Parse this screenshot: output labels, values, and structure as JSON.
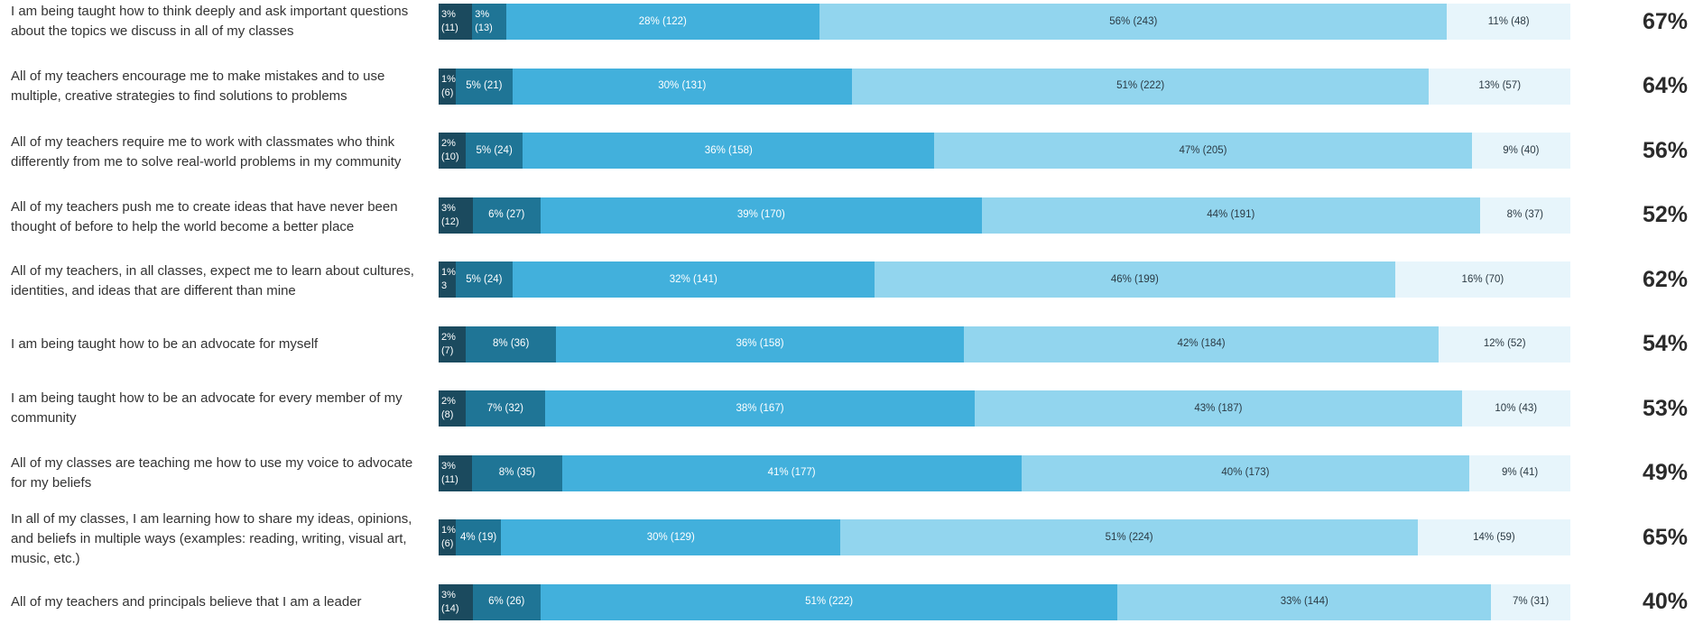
{
  "chart_data": {
    "type": "bar",
    "orientation": "horizontal",
    "stacked": true,
    "legend": "none",
    "colors": [
      "#1b4a5e",
      "#1f7596",
      "#42b0dc",
      "#92d5ee",
      "#e7f5fb"
    ],
    "rows": [
      {
        "statement": "I am being taught how to think deeply and ask important questions about the topics we discuss in all of my classes",
        "segments": [
          {
            "pct": 3,
            "count": 11,
            "label": "3%",
            "count_label": "(11)"
          },
          {
            "pct": 3,
            "count": 13,
            "label": "3%",
            "count_label": "(13)"
          },
          {
            "pct": 28,
            "count": 122,
            "label": "28% (122)"
          },
          {
            "pct": 56,
            "count": 243,
            "label": "56% (243)"
          },
          {
            "pct": 11,
            "count": 48,
            "label": "11% (48)"
          }
        ],
        "agree_total": "67%"
      },
      {
        "statement": "All of my teachers encourage me to make mistakes and to use multiple, creative strategies to find solutions to problems",
        "segments": [
          {
            "pct": 1,
            "count": 6,
            "label": "1%",
            "count_label": "(6)"
          },
          {
            "pct": 5,
            "count": 21,
            "label": "5% (21)"
          },
          {
            "pct": 30,
            "count": 131,
            "label": "30% (131)"
          },
          {
            "pct": 51,
            "count": 222,
            "label": "51% (222)"
          },
          {
            "pct": 13,
            "count": 57,
            "label": "13% (57)"
          }
        ],
        "agree_total": "64%"
      },
      {
        "statement": "All of my teachers require me to work with classmates who think differently from me to solve real-world problems in my community",
        "segments": [
          {
            "pct": 2,
            "count": 10,
            "label": "2%",
            "count_label": "(10)"
          },
          {
            "pct": 5,
            "count": 24,
            "label": "5% (24)"
          },
          {
            "pct": 36,
            "count": 158,
            "label": "36% (158)"
          },
          {
            "pct": 47,
            "count": 205,
            "label": "47% (205)"
          },
          {
            "pct": 9,
            "count": 40,
            "label": "9% (40)"
          }
        ],
        "agree_total": "56%"
      },
      {
        "statement": "All of my teachers push me to create ideas that have never been thought of before to help the world become a better place",
        "segments": [
          {
            "pct": 3,
            "count": 12,
            "label": "3%",
            "count_label": "(12)"
          },
          {
            "pct": 6,
            "count": 27,
            "label": "6% (27)"
          },
          {
            "pct": 39,
            "count": 170,
            "label": "39% (170)"
          },
          {
            "pct": 44,
            "count": 191,
            "label": "44% (191)"
          },
          {
            "pct": 8,
            "count": 37,
            "label": "8% (37)"
          }
        ],
        "agree_total": "52%"
      },
      {
        "statement": "All of my teachers, in all classes, expect me to learn about cultures, identities, and ideas that are different than mine",
        "segments": [
          {
            "pct": 1,
            "count": 3,
            "label": "1%",
            "count_label": "3"
          },
          {
            "pct": 5,
            "count": 24,
            "label": "5% (24)"
          },
          {
            "pct": 32,
            "count": 141,
            "label": "32% (141)"
          },
          {
            "pct": 46,
            "count": 199,
            "label": "46% (199)"
          },
          {
            "pct": 16,
            "count": 70,
            "label": "16% (70)"
          }
        ],
        "agree_total": "62%"
      },
      {
        "statement": "I am being taught how to be an advocate for myself",
        "segments": [
          {
            "pct": 2,
            "count": 7,
            "label": "2%",
            "count_label": "(7)"
          },
          {
            "pct": 8,
            "count": 36,
            "label": "8% (36)"
          },
          {
            "pct": 36,
            "count": 158,
            "label": "36% (158)"
          },
          {
            "pct": 42,
            "count": 184,
            "label": "42% (184)"
          },
          {
            "pct": 12,
            "count": 52,
            "label": "12% (52)"
          }
        ],
        "agree_total": "54%"
      },
      {
        "statement": "I am being taught how to be an advocate for every member of my community",
        "segments": [
          {
            "pct": 2,
            "count": 8,
            "label": "2%",
            "count_label": "(8)"
          },
          {
            "pct": 7,
            "count": 32,
            "label": "7% (32)"
          },
          {
            "pct": 38,
            "count": 167,
            "label": "38% (167)"
          },
          {
            "pct": 43,
            "count": 187,
            "label": "43% (187)"
          },
          {
            "pct": 10,
            "count": 43,
            "label": "10% (43)"
          }
        ],
        "agree_total": "53%"
      },
      {
        "statement": "All of my classes are teaching me how to use my voice to advocate for my beliefs",
        "segments": [
          {
            "pct": 3,
            "count": 11,
            "label": "3%",
            "count_label": "(11)"
          },
          {
            "pct": 8,
            "count": 35,
            "label": "8% (35)"
          },
          {
            "pct": 41,
            "count": 177,
            "label": "41% (177)"
          },
          {
            "pct": 40,
            "count": 173,
            "label": "40% (173)"
          },
          {
            "pct": 9,
            "count": 41,
            "label": "9% (41)"
          }
        ],
        "agree_total": "49%"
      },
      {
        "statement": "In all of my classes, I am learning how to share my ideas, opinions, and beliefs in multiple ways (examples: reading, writing, visual art, music, etc.)",
        "segments": [
          {
            "pct": 1,
            "count": 6,
            "label": "1%",
            "count_label": "(6)"
          },
          {
            "pct": 4,
            "count": 19,
            "label": "4% (19)"
          },
          {
            "pct": 30,
            "count": 129,
            "label": "30% (129)"
          },
          {
            "pct": 51,
            "count": 224,
            "label": "51% (224)"
          },
          {
            "pct": 14,
            "count": 59,
            "label": "14% (59)"
          }
        ],
        "agree_total": "65%"
      },
      {
        "statement": "All of my teachers and principals believe that I am a leader",
        "segments": [
          {
            "pct": 3,
            "count": 14,
            "label": "3%",
            "count_label": "(14)"
          },
          {
            "pct": 6,
            "count": 26,
            "label": "6% (26)"
          },
          {
            "pct": 51,
            "count": 222,
            "label": "51% (222)"
          },
          {
            "pct": 33,
            "count": 144,
            "label": "33% (144)"
          },
          {
            "pct": 7,
            "count": 31,
            "label": "7% (31)"
          }
        ],
        "agree_total": "40%"
      }
    ]
  }
}
